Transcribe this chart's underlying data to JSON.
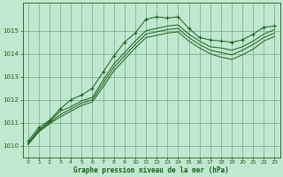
{
  "title": "Graphe pression niveau de la mer (hPa)",
  "background_color": "#c0e8d0",
  "plot_bg_color": "#c0e8d0",
  "grid_color": "#5a9a6a",
  "line_color": "#1a5c1a",
  "xlim": [
    -0.5,
    23.5
  ],
  "ylim": [
    1009.5,
    1016.2
  ],
  "yticks": [
    1010,
    1011,
    1012,
    1013,
    1014,
    1015
  ],
  "xticks": [
    0,
    1,
    2,
    3,
    4,
    5,
    6,
    7,
    8,
    9,
    10,
    11,
    12,
    13,
    14,
    15,
    16,
    17,
    18,
    19,
    20,
    21,
    22,
    23
  ],
  "series": [
    {
      "x": [
        0,
        1,
        2,
        3,
        4,
        5,
        6,
        7,
        8,
        9,
        10,
        11,
        12,
        13,
        14,
        15,
        16,
        17,
        18,
        19,
        20,
        21,
        22,
        23
      ],
      "y": [
        1010.2,
        1010.8,
        1011.1,
        1011.6,
        1012.0,
        1012.2,
        1012.5,
        1013.2,
        1013.9,
        1014.5,
        1014.9,
        1015.5,
        1015.6,
        1015.55,
        1015.6,
        1015.1,
        1014.7,
        1014.6,
        1014.55,
        1014.5,
        1014.6,
        1014.85,
        1015.15,
        1015.2
      ],
      "marker": "+"
    },
    {
      "x": [
        0,
        1,
        2,
        3,
        4,
        5,
        6,
        7,
        8,
        9,
        10,
        11,
        12,
        13,
        14,
        15,
        16,
        17,
        18,
        19,
        20,
        21,
        22,
        23
      ],
      "y": [
        1010.1,
        1010.7,
        1011.05,
        1011.5,
        1011.7,
        1011.95,
        1012.1,
        1012.85,
        1013.55,
        1014.05,
        1014.55,
        1015.0,
        1015.1,
        1015.2,
        1015.25,
        1014.85,
        1014.55,
        1014.3,
        1014.25,
        1014.15,
        1014.3,
        1014.55,
        1014.85,
        1015.05
      ],
      "marker": null
    },
    {
      "x": [
        0,
        1,
        2,
        3,
        4,
        5,
        6,
        7,
        8,
        9,
        10,
        11,
        12,
        13,
        14,
        15,
        16,
        17,
        18,
        19,
        20,
        21,
        22,
        23
      ],
      "y": [
        1010.1,
        1010.65,
        1011.0,
        1011.35,
        1011.6,
        1011.85,
        1012.0,
        1012.7,
        1013.4,
        1013.9,
        1014.4,
        1014.85,
        1014.95,
        1015.05,
        1015.1,
        1014.7,
        1014.4,
        1014.15,
        1014.05,
        1013.95,
        1014.15,
        1014.4,
        1014.7,
        1014.9
      ],
      "marker": null
    },
    {
      "x": [
        0,
        1,
        2,
        3,
        4,
        5,
        6,
        7,
        8,
        9,
        10,
        11,
        12,
        13,
        14,
        15,
        16,
        17,
        18,
        19,
        20,
        21,
        22,
        23
      ],
      "y": [
        1010.05,
        1010.6,
        1010.95,
        1011.25,
        1011.5,
        1011.75,
        1011.9,
        1012.55,
        1013.25,
        1013.75,
        1014.25,
        1014.7,
        1014.8,
        1014.9,
        1014.95,
        1014.55,
        1014.25,
        1014.0,
        1013.85,
        1013.75,
        1013.95,
        1014.2,
        1014.55,
        1014.75
      ],
      "marker": null
    }
  ]
}
